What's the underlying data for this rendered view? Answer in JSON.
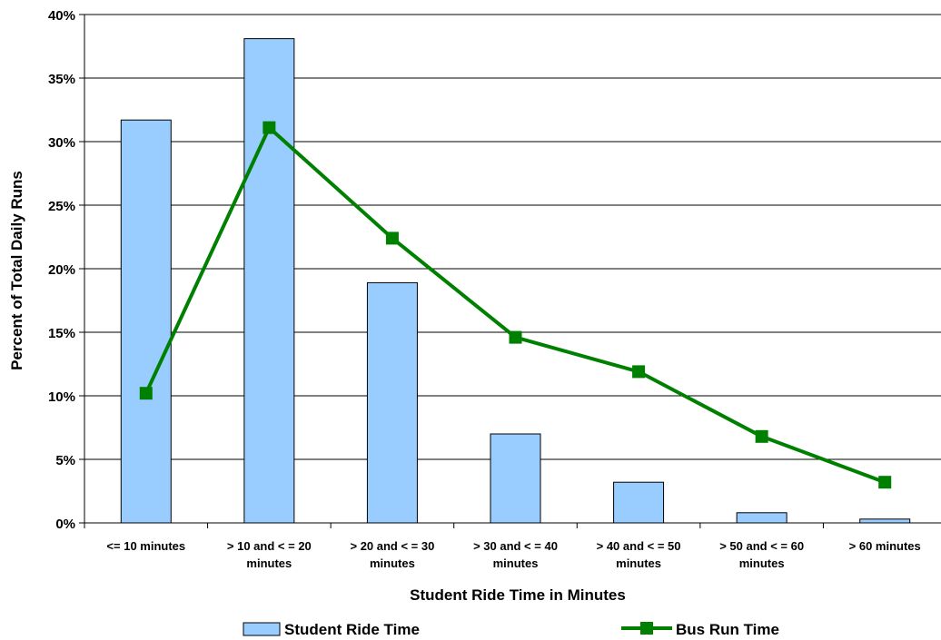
{
  "chart_data": {
    "type": "bar",
    "title": "",
    "xlabel": "Student Ride Time in Minutes",
    "ylabel": "Percent of Total Daily Runs",
    "ylim": [
      0,
      40
    ],
    "y_ticks": [
      {
        "value": 0,
        "label": "0%"
      },
      {
        "value": 5,
        "label": "5%"
      },
      {
        "value": 10,
        "label": "10%"
      },
      {
        "value": 15,
        "label": "15%"
      },
      {
        "value": 20,
        "label": "20%"
      },
      {
        "value": 25,
        "label": "25%"
      },
      {
        "value": 30,
        "label": "30%"
      },
      {
        "value": 35,
        "label": "35%"
      },
      {
        "value": 40,
        "label": "40%"
      }
    ],
    "grid": true,
    "legend_position": "bottom",
    "categories": [
      [
        "<= 10 minutes"
      ],
      [
        "> 10 and < = 20",
        "minutes"
      ],
      [
        "> 20 and < = 30",
        "minutes"
      ],
      [
        "> 30 and < = 40",
        "minutes"
      ],
      [
        "> 40 and < = 50",
        "minutes"
      ],
      [
        "> 50 and < = 60",
        "minutes"
      ],
      [
        "> 60 minutes"
      ]
    ],
    "series": [
      {
        "name": "Student Ride Time",
        "type": "bar",
        "color": "#99ccff",
        "values": [
          31.7,
          38.1,
          18.9,
          7.0,
          3.2,
          0.8,
          0.3
        ]
      },
      {
        "name": "Bus Run Time",
        "type": "line",
        "color": "#008000",
        "values": [
          10.2,
          31.1,
          22.4,
          14.6,
          11.9,
          6.8,
          3.2
        ]
      }
    ]
  }
}
